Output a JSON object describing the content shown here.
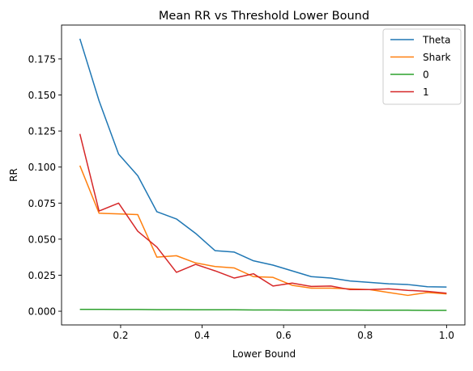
{
  "chart_data": {
    "type": "line",
    "title": "Mean RR vs Threshold Lower Bound",
    "xlabel": "Lower Bound",
    "ylabel": "RR",
    "xlim": [
      0.055,
      1.045
    ],
    "ylim": [
      -0.0095,
      0.1985
    ],
    "x_ticks": [
      0.2,
      0.4,
      0.6,
      0.8,
      1.0
    ],
    "x_tick_labels": [
      "0.2",
      "0.4",
      "0.6",
      "0.8",
      "1.0"
    ],
    "y_ticks": [
      0.0,
      0.025,
      0.05,
      0.075,
      0.1,
      0.125,
      0.15,
      0.175
    ],
    "y_tick_labels": [
      "0.000",
      "0.025",
      "0.050",
      "0.075",
      "0.100",
      "0.125",
      "0.150",
      "0.175"
    ],
    "grid": false,
    "legend_position": "upper right",
    "x": [
      0.1,
      0.147,
      0.195,
      0.242,
      0.289,
      0.337,
      0.384,
      0.432,
      0.479,
      0.526,
      0.574,
      0.621,
      0.668,
      0.716,
      0.763,
      0.811,
      0.858,
      0.905,
      0.953,
      1.0
    ],
    "series": [
      {
        "name": "Theta",
        "color": "#1f77b4",
        "values": [
          0.189,
          0.146,
          0.109,
          0.094,
          0.069,
          0.064,
          0.054,
          0.042,
          0.041,
          0.035,
          0.032,
          0.028,
          0.024,
          0.023,
          0.021,
          0.02,
          0.019,
          0.0185,
          0.017,
          0.0168
        ]
      },
      {
        "name": "Shark",
        "color": "#ff7f0e",
        "values": [
          0.101,
          0.068,
          0.0675,
          0.067,
          0.0375,
          0.0385,
          0.0335,
          0.031,
          0.03,
          0.024,
          0.0235,
          0.018,
          0.016,
          0.016,
          0.0155,
          0.015,
          0.013,
          0.011,
          0.013,
          0.012
        ]
      },
      {
        "name": "0",
        "color": "#2ca02c",
        "values": [
          0.0013,
          0.0013,
          0.0012,
          0.0012,
          0.0011,
          0.0011,
          0.001,
          0.001,
          0.001,
          0.0009,
          0.0009,
          0.0008,
          0.0008,
          0.0008,
          0.0008,
          0.0007,
          0.0007,
          0.0007,
          0.0006,
          0.0006
        ]
      },
      {
        "name": "1",
        "color": "#d62728",
        "values": [
          0.123,
          0.0695,
          0.075,
          0.0555,
          0.0445,
          0.027,
          0.0325,
          0.028,
          0.023,
          0.026,
          0.0175,
          0.0195,
          0.0172,
          0.0175,
          0.015,
          0.015,
          0.0155,
          0.0145,
          0.0138,
          0.0125
        ]
      }
    ]
  }
}
